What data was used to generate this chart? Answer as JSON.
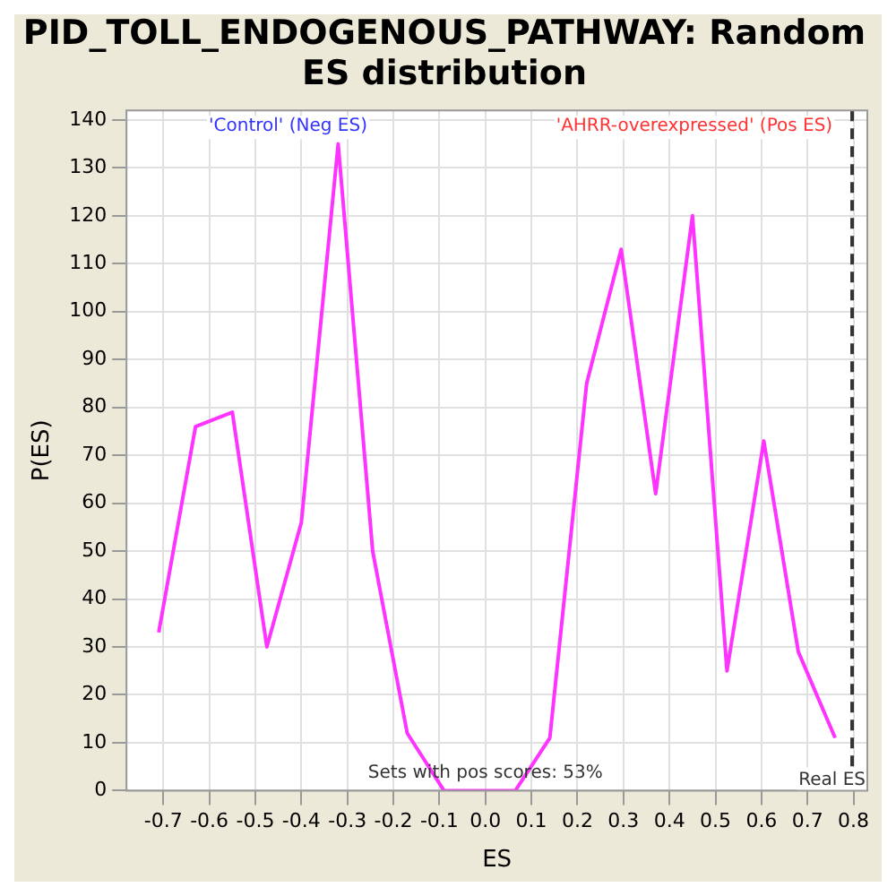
{
  "chart_data": {
    "type": "line",
    "title": "PID_TOLL_ENDOGENOUS_PATHWAY: Random ES distribution",
    "xlabel": "ES",
    "ylabel": "P(ES)",
    "x": [
      -0.71,
      -0.63,
      -0.55,
      -0.475,
      -0.4,
      -0.32,
      -0.245,
      -0.17,
      -0.09,
      -0.01,
      0.065,
      0.14,
      0.22,
      0.295,
      0.37,
      0.45,
      0.525,
      0.605,
      0.68,
      0.76
    ],
    "series": [
      {
        "color": "#ff33ff",
        "values": [
          33,
          76,
          79,
          30,
          56,
          135,
          50,
          12,
          0,
          0,
          0,
          11,
          85,
          113,
          62,
          120,
          25,
          73,
          29,
          11
        ]
      }
    ],
    "xlim": [
      -0.78,
      0.83
    ],
    "ylim": [
      0,
      142
    ],
    "xticks": [
      -0.7,
      -0.6,
      -0.5,
      -0.4,
      -0.3,
      -0.2,
      -0.1,
      {
        "value": 0,
        "label": "0.0"
      },
      0.1,
      0.2,
      0.3,
      0.4,
      0.5,
      0.6,
      0.7,
      0.8
    ],
    "yticks": [
      0,
      10,
      20,
      30,
      40,
      50,
      60,
      70,
      80,
      90,
      100,
      110,
      120,
      130,
      140
    ],
    "grid": true,
    "legend": false,
    "marker": "none",
    "line_style": "solid",
    "ref_lines": [
      {
        "axis": "x",
        "value": 0.797,
        "label": "Real ES",
        "color": "#333333",
        "line_style": "dashed"
      }
    ],
    "annotations": [
      "'Control' (Neg ES)",
      "'AHRR-overexpressed' (Pos ES)",
      "Sets with pos scores: 53%"
    ]
  }
}
